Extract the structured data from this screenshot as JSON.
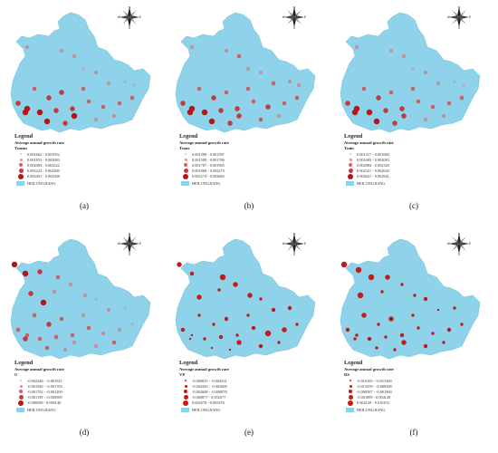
{
  "colors": {
    "region_fill": "#8fd3ea",
    "dot_light": "#f2a6a6",
    "dot_mid": "#e05a5a",
    "dot_dark": "#c41414"
  },
  "compass_letters": {
    "n": "N",
    "s": "S",
    "e": "E",
    "w": "W"
  },
  "panels": [
    {
      "caption": "(a)",
      "legend_title": "Legend",
      "legend_subtitle": "Average annual growth rate",
      "variable": "Tmean",
      "classes": [
        "0.001662 - 0.001852",
        "0.001853 - 0.002083",
        "0.002084 - 0.002222",
        "0.002223 - 0.002400",
        "0.002401 - 0.002568"
      ],
      "region_label": "HEILONGJIANG"
    },
    {
      "caption": "(b)",
      "legend_title": "Legend",
      "legend_subtitle": "Average annual growth rate",
      "variable": "Tmax",
      "classes": [
        "0.001380 - 0.001587",
        "0.001588 - 0.001786",
        "0.001787 - 0.001965",
        "0.001966 - 0.002273",
        "0.002274 - 0.002683"
      ],
      "region_label": "HEILONGJIANG"
    },
    {
      "caption": "(c)",
      "legend_title": "Legend",
      "legend_subtitle": "Average annual growth rate",
      "variable": "Tmin",
      "classes": [
        "0.001417 - 0.001684",
        "0.001685 - 0.002083",
        "0.002084 - 0.002320",
        "0.002321 - 0.002620",
        "0.002621 - 0.002941"
      ],
      "region_label": "HEILONGJIANG"
    },
    {
      "caption": "(d)",
      "legend_title": "Legend",
      "legend_subtitle": "Average annual growth rate",
      "variable": "U",
      "classes": [
        "-0.002248 - -0.001921",
        "-0.001920 - -0.001703",
        "-0.001702 - -0.001200",
        "-0.001199 - -0.000509",
        "-0.000508 - 0.000140"
      ],
      "region_label": "HEILONGJIANG"
    },
    {
      "caption": "(e)",
      "legend_title": "Legend",
      "legend_subtitle": "Average annual growth rate",
      "variable": "VP",
      "classes": [
        "-0.006815 - -0.004331",
        "-0.004330 - -0.002609",
        "-0.002608 - -0.000878",
        "-0.000877 - 0.002677",
        "0.002678 - 0.005476"
      ],
      "region_label": "HEILONGJIANG"
    },
    {
      "caption": "(f)",
      "legend_title": "Legend",
      "legend_subtitle": "Average annual growth rate",
      "variable": "RS",
      "classes": [
        "-0.016103 - -0.013360",
        "-0.013359 - -0.008308",
        "-0.008307 - -0.001900",
        "-0.001899 - 0.004128",
        "0.004129 - 0.016103"
      ],
      "region_label": "HEILONGJIANG"
    }
  ]
}
